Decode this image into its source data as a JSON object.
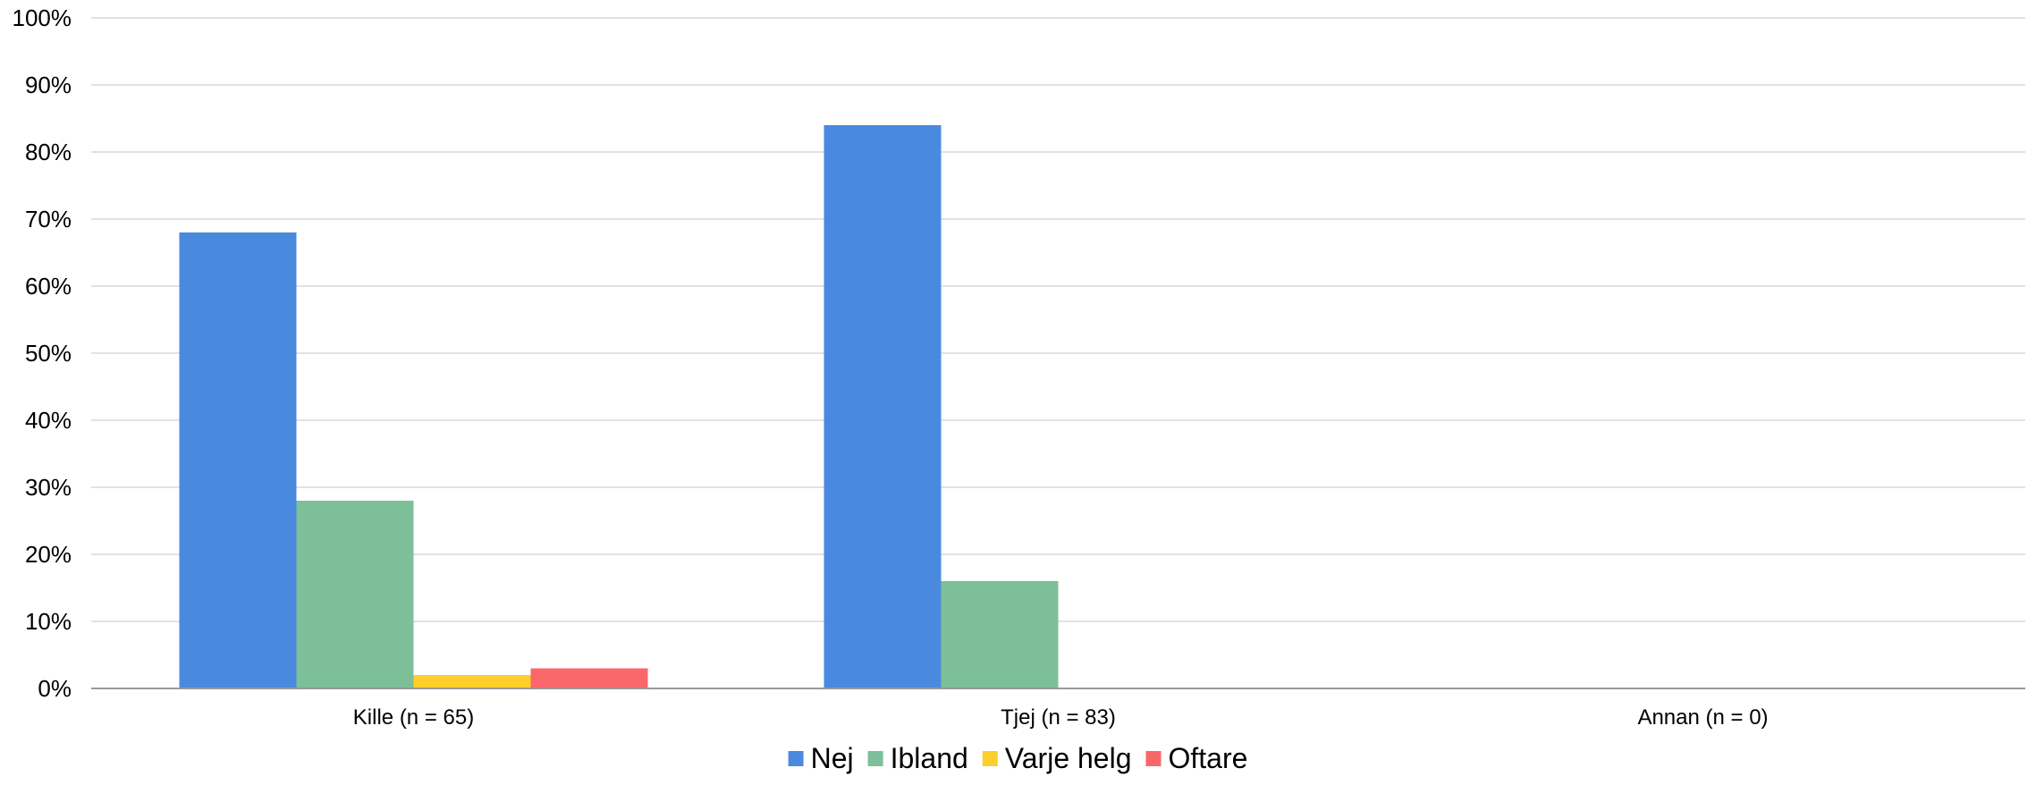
{
  "chart_data": {
    "type": "bar",
    "categories": [
      "Kille (n = 65)",
      "Tjej (n = 83)",
      "Annan (n = 0)"
    ],
    "series": [
      {
        "name": "Nej",
        "color": "#4a8ade",
        "values": [
          68,
          84,
          0
        ]
      },
      {
        "name": "Ibland",
        "color": "#7dbf98",
        "values": [
          28,
          16,
          0
        ]
      },
      {
        "name": "Varje helg",
        "color": "#fccf2c",
        "values": [
          2,
          0,
          0
        ]
      },
      {
        "name": "Oftare",
        "color": "#fa676b",
        "values": [
          3,
          0,
          0
        ]
      }
    ],
    "ylim": [
      0,
      100
    ],
    "yticks": [
      "0%",
      "10%",
      "20%",
      "30%",
      "40%",
      "50%",
      "60%",
      "70%",
      "80%",
      "90%",
      "100%"
    ],
    "grid": true,
    "legend_position": "bottom"
  }
}
